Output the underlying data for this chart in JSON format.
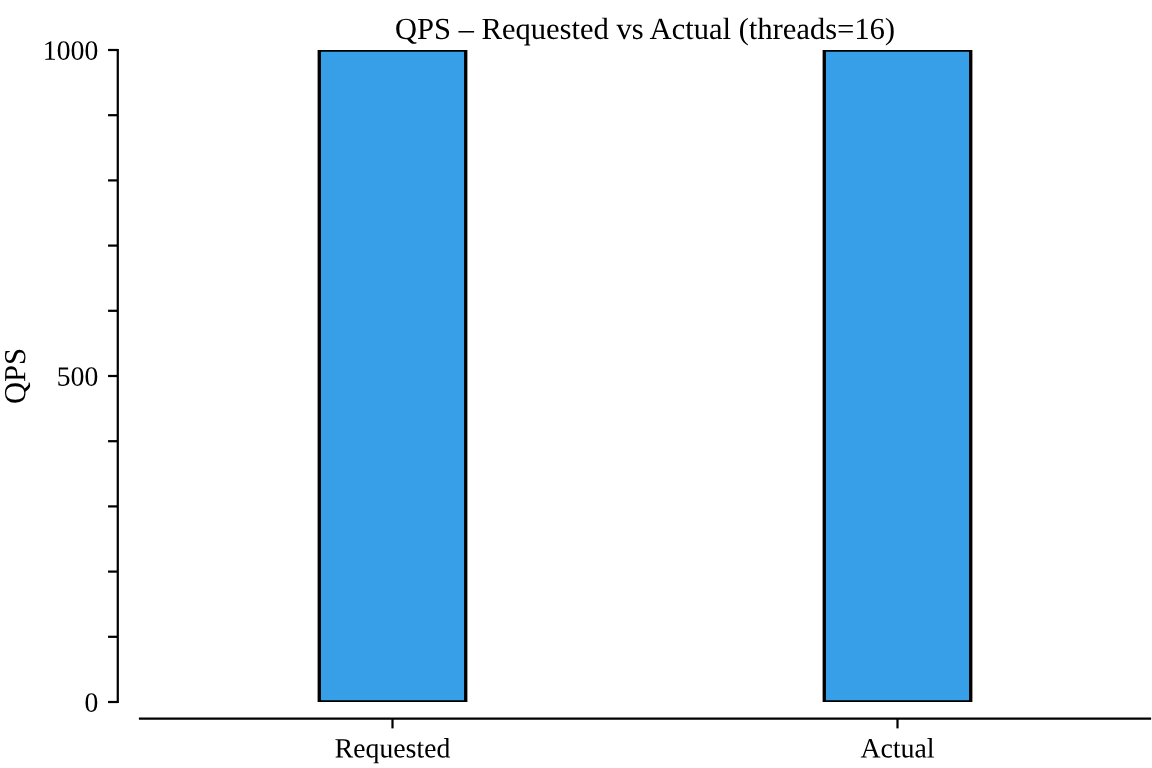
{
  "chart_data": {
    "type": "bar",
    "title": "QPS – Requested vs Actual (threads=16)",
    "ylabel": "QPS",
    "categories": [
      "Requested",
      "Actual"
    ],
    "values": [
      1000,
      1000
    ],
    "color": "#379fe8",
    "ylim": [
      0,
      1000
    ],
    "yticks": [
      0,
      {
        "value": 100,
        "label": null
      },
      {
        "value": 200,
        "label": null
      },
      {
        "value": 300,
        "label": null
      },
      {
        "value": 400,
        "label": null
      },
      500,
      {
        "value": 600,
        "label": null
      },
      {
        "value": 700,
        "label": null
      },
      {
        "value": 800,
        "label": null
      },
      {
        "value": 900,
        "label": null
      },
      1000
    ],
    "grid": false,
    "legend": false
  }
}
